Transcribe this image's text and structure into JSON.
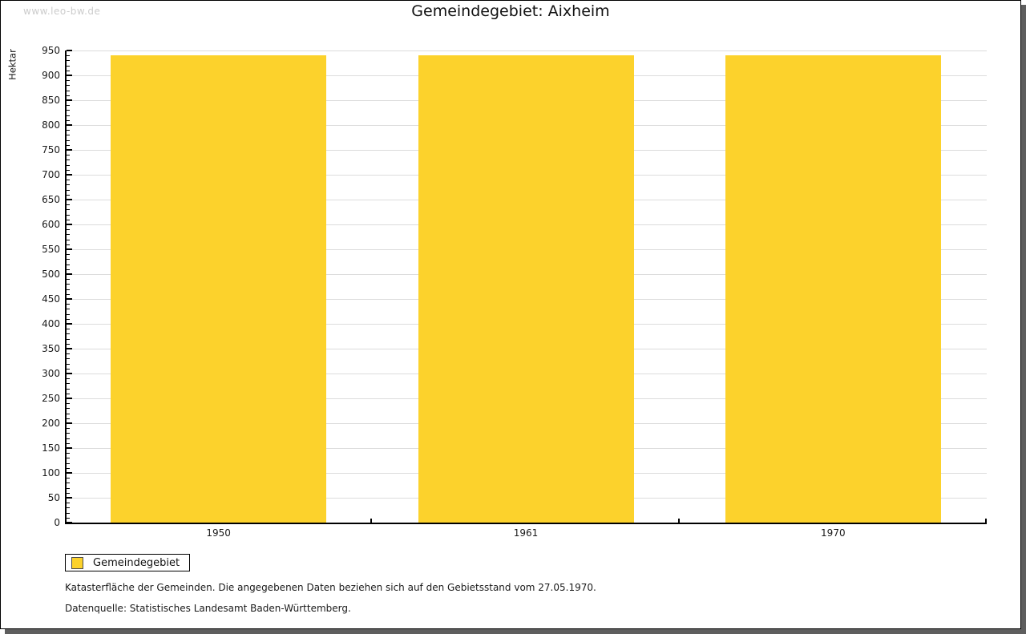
{
  "watermark": "www.leo-bw.de",
  "title": "Gemeindegebiet: Aixheim",
  "chart_data": {
    "type": "bar",
    "title": "Gemeindegebiet: Aixheim",
    "categories": [
      "1950",
      "1961",
      "1970"
    ],
    "series": [
      {
        "name": "Gemeindegebiet",
        "values": [
          941,
          941,
          941
        ]
      }
    ],
    "xlabel": "",
    "ylabel": "Hektar",
    "ylim": [
      0,
      950
    ],
    "ytick_major": 50,
    "ytick_minor": 10,
    "grid": true,
    "legend_position": "bottom-left",
    "bar_color": "#FCD22C"
  },
  "legend": {
    "label": "Gemeindegebiet",
    "swatch_color": "#FCD22C"
  },
  "footer": {
    "line1": "Katasterfläche der Gemeinden. Die angegebenen Daten beziehen sich auf den Gebietsstand vom 27.05.1970.",
    "line2": "Datenquelle: Statistisches Landesamt Baden-Württemberg."
  },
  "colors": {
    "bar": "#FCD22C",
    "grid": "#dcdcdc",
    "axis": "#000000",
    "text": "#1a1a1a",
    "watermark": "#cccccc",
    "shadow": "#5e5e5e"
  }
}
